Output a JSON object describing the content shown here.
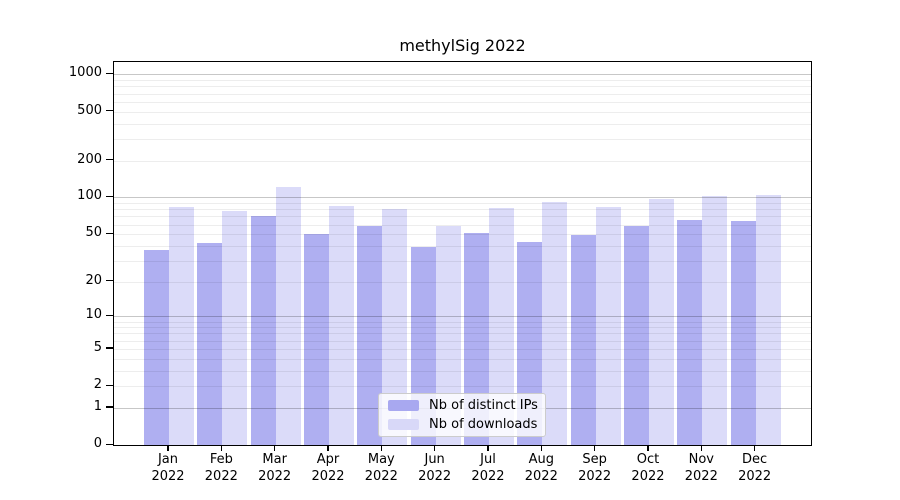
{
  "title": "methylSig 2022",
  "chart_data": {
    "type": "bar",
    "title": "methylSig 2022",
    "categories": [
      "Jan",
      "Feb",
      "Mar",
      "Apr",
      "May",
      "Jun",
      "Jul",
      "Aug",
      "Sep",
      "Oct",
      "Nov",
      "Dec"
    ],
    "category_year": "2022",
    "series": [
      {
        "name": "Nb of distinct IPs",
        "color": "#a8a8f0",
        "values": [
          37,
          42,
          70,
          50,
          58,
          39,
          51,
          43,
          49,
          58,
          65,
          64
        ]
      },
      {
        "name": "Nb of downloads",
        "color": "#d8d8f8",
        "values": [
          83,
          78,
          122,
          85,
          80,
          58,
          82,
          92,
          84,
          98,
          102,
          105
        ]
      }
    ],
    "xlabel": "",
    "ylabel": "",
    "y_ticks": [
      1000,
      500,
      200,
      100,
      50,
      20,
      10,
      5,
      2,
      1,
      0
    ],
    "y_scale": "log10(value+1)",
    "ylim": [
      0,
      1300
    ],
    "grid": "on",
    "legend_position": "bottom-center"
  },
  "colors": {
    "background": "#ffffff",
    "bar_distinct_ips": "#a8a8f0",
    "bar_downloads": "#d8d8f8",
    "grid_major": "#c9c9c9",
    "grid_minor": "#e9e9e9",
    "axis": "#000000",
    "text": "#000000",
    "legend_border": "#cccccc",
    "legend_background": "rgba(255,255,255,0.8)"
  }
}
